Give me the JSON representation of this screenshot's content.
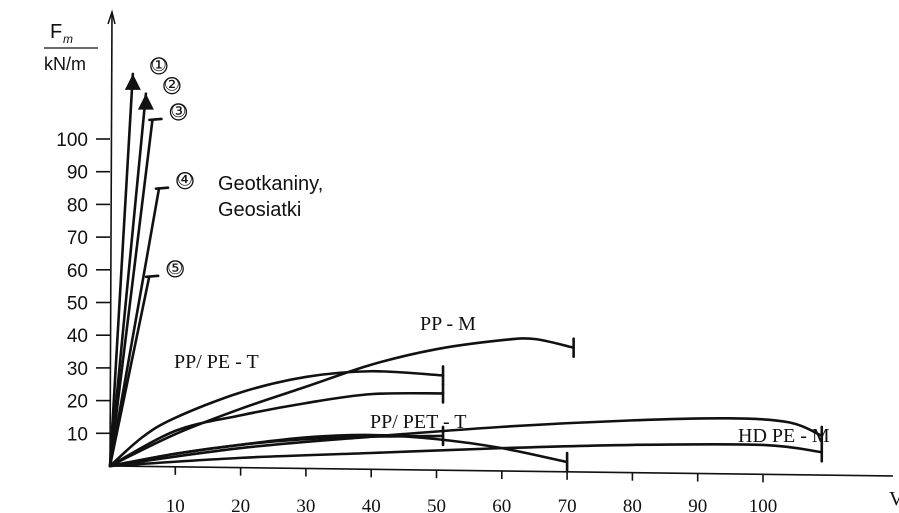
{
  "chart_data": {
    "type": "line",
    "ylabel_top": "F",
    "ylabel_sub": "m",
    "ylabel_unit": "kN/m",
    "xlabel": "V",
    "x_ticks": [
      10,
      20,
      30,
      40,
      50,
      60,
      70,
      80,
      90,
      100
    ],
    "y_ticks": [
      10,
      20,
      30,
      40,
      50,
      60,
      70,
      80,
      90,
      100
    ],
    "xlim": [
      0,
      120
    ],
    "ylim": [
      0,
      140
    ],
    "grid": false,
    "group_annotation": [
      "Geotkaniny,",
      "Geosiatki"
    ],
    "numbered_series": [
      {
        "marker": "①",
        "points": [
          [
            0,
            0
          ],
          [
            3.5,
            120
          ]
        ],
        "end": "arrow"
      },
      {
        "marker": "②",
        "points": [
          [
            0,
            0
          ],
          [
            5.5,
            114
          ]
        ],
        "end": "arrow"
      },
      {
        "marker": "③",
        "points": [
          [
            0,
            0
          ],
          [
            6.5,
            106
          ]
        ],
        "end": "bar"
      },
      {
        "marker": "④",
        "points": [
          [
            0,
            0
          ],
          [
            7.5,
            85
          ]
        ],
        "end": "bar"
      },
      {
        "marker": "⑤",
        "points": [
          [
            0,
            0
          ],
          [
            6,
            58
          ]
        ],
        "end": "bar"
      }
    ],
    "series": [
      {
        "label": "PP - M",
        "points": [
          [
            0,
            0
          ],
          [
            10,
            10
          ],
          [
            20,
            18
          ],
          [
            30,
            25
          ],
          [
            40,
            32
          ],
          [
            50,
            37
          ],
          [
            60,
            40
          ],
          [
            65,
            40.5
          ],
          [
            71,
            38
          ]
        ],
        "end": "bar"
      },
      {
        "label": "PP/ PE - T",
        "points": [
          [
            0,
            0
          ],
          [
            5,
            9
          ],
          [
            10,
            15
          ],
          [
            20,
            23
          ],
          [
            30,
            28
          ],
          [
            40,
            30
          ],
          [
            51,
            29
          ]
        ],
        "end": "bar"
      },
      {
        "label": "",
        "points": [
          [
            0,
            0
          ],
          [
            10,
            11
          ],
          [
            20,
            16
          ],
          [
            30,
            20
          ],
          [
            40,
            23
          ],
          [
            51,
            23.5
          ]
        ],
        "end": "bar"
      },
      {
        "label": "PP/ PET - T",
        "points": [
          [
            0,
            0
          ],
          [
            10,
            4
          ],
          [
            20,
            7
          ],
          [
            30,
            9
          ],
          [
            40,
            10
          ],
          [
            51,
            10.5
          ]
        ],
        "end": "bar"
      },
      {
        "label": "",
        "points": [
          [
            0,
            0
          ],
          [
            10,
            4
          ],
          [
            20,
            7
          ],
          [
            30,
            9.5
          ],
          [
            40,
            10.5
          ],
          [
            50,
            9.5
          ],
          [
            60,
            7
          ],
          [
            70,
            3
          ]
        ],
        "end": "bar"
      },
      {
        "label": "HD PE - M",
        "points": [
          [
            0,
            0
          ],
          [
            20,
            6
          ],
          [
            40,
            10
          ],
          [
            60,
            13.5
          ],
          [
            80,
            16
          ],
          [
            95,
            17
          ],
          [
            104,
            16
          ],
          [
            109,
            12
          ]
        ],
        "end": "bar"
      },
      {
        "label": "",
        "points": [
          [
            0,
            0
          ],
          [
            20,
            3
          ],
          [
            40,
            5
          ],
          [
            60,
            7
          ],
          [
            80,
            8.5
          ],
          [
            100,
            9
          ],
          [
            109,
            7
          ]
        ],
        "end": "bar"
      }
    ]
  }
}
